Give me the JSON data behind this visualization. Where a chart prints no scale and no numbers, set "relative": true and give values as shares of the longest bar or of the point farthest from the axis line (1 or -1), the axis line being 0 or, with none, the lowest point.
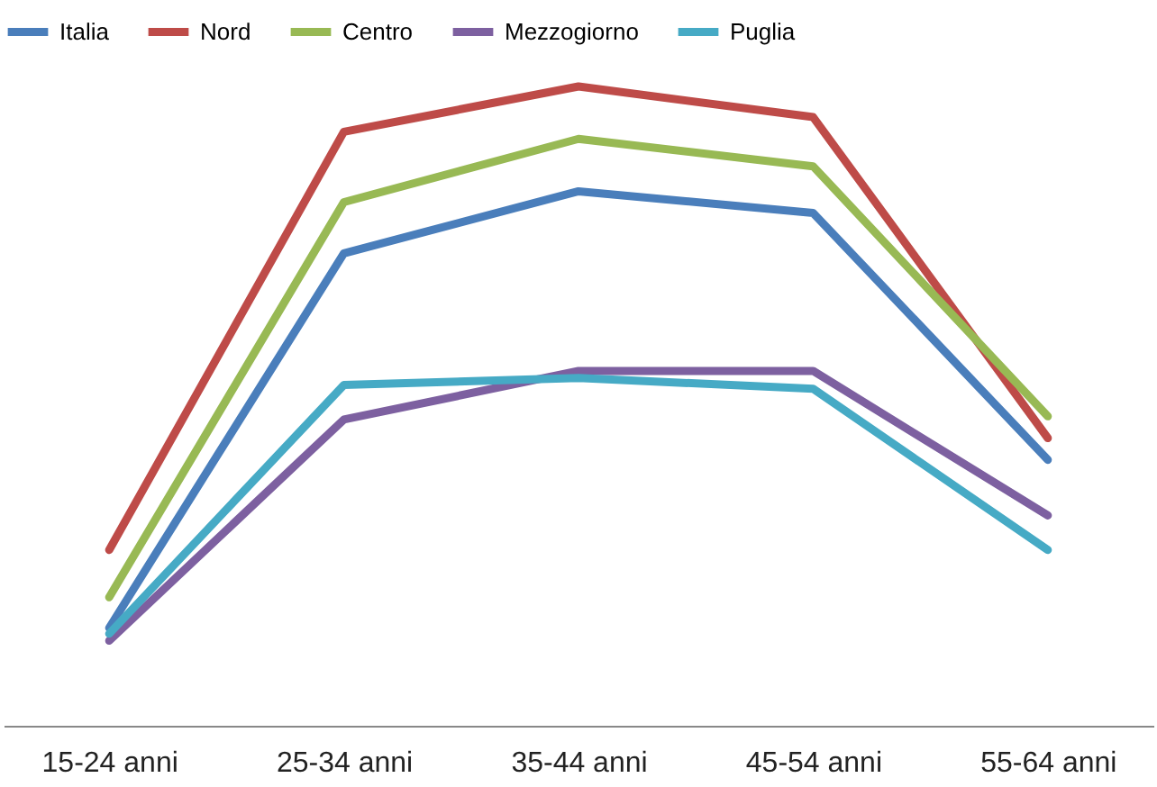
{
  "chart_data": {
    "type": "line",
    "relative": true,
    "legend": "top",
    "grid": false,
    "line_style": "solid",
    "categories": [
      "15-24 anni",
      "25-34 anni",
      "35-44 anni",
      "45-54 anni",
      "55-64 anni"
    ],
    "series": [
      {
        "name": "Italia",
        "color": "#4a7ebb",
        "values": [
          0.153,
          0.739,
          0.836,
          0.802,
          0.416
        ]
      },
      {
        "name": "Nord",
        "color": "#be4b48",
        "values": [
          0.275,
          0.929,
          1,
          0.952,
          0.45
        ]
      },
      {
        "name": "Centro",
        "color": "#98b954",
        "values": [
          0.201,
          0.819,
          0.918,
          0.875,
          0.484
        ]
      },
      {
        "name": "Mezzogiorno",
        "color": "#7d60a0",
        "values": [
          0.133,
          0.479,
          0.555,
          0.555,
          0.329
        ]
      },
      {
        "name": "Puglia",
        "color": "#46aac5",
        "values": [
          0.144,
          0.533,
          0.544,
          0.527,
          0.275
        ]
      }
    ]
  }
}
